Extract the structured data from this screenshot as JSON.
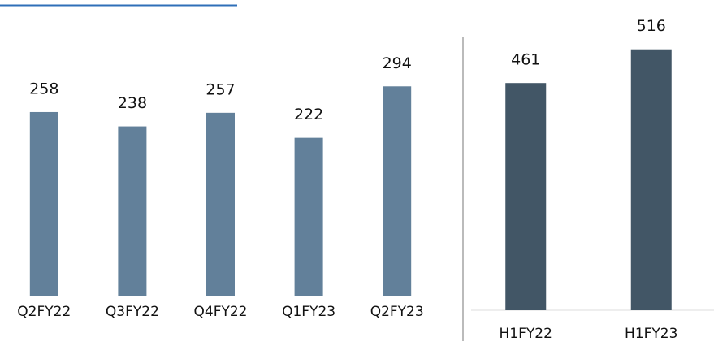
{
  "chart_data": [
    {
      "type": "bar",
      "categories": [
        "Q2FY22",
        "Q3FY22",
        "Q4FY22",
        "Q1FY23",
        "Q2FY23"
      ],
      "values": [
        258,
        238,
        257,
        222,
        294
      ],
      "color": "#62809a",
      "ylim": [
        0,
        400
      ]
    },
    {
      "type": "bar",
      "categories": [
        "H1FY22",
        "H1FY23"
      ],
      "values": [
        461,
        516
      ],
      "color": "#425666",
      "ylim": [
        90,
        570
      ]
    }
  ]
}
